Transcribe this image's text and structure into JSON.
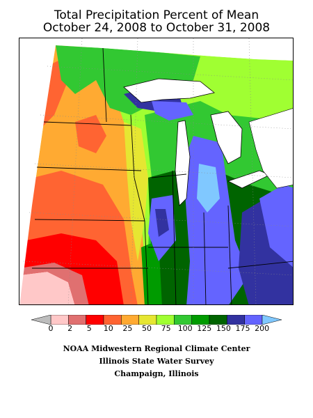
{
  "title": {
    "line1": "Total Precipitation Percent of Mean",
    "line2": "October 24, 2008 to October 31, 2008"
  },
  "legend": {
    "under_color": "#bdbdbd",
    "over_color": "#80c8ff",
    "bins": [
      {
        "color": "#ffc8c8"
      },
      {
        "color": "#e07070"
      },
      {
        "color": "#ff0000"
      },
      {
        "color": "#ff6432"
      },
      {
        "color": "#ffaa32"
      },
      {
        "color": "#e6e632"
      },
      {
        "color": "#a0ff32"
      },
      {
        "color": "#32c832"
      },
      {
        "color": "#009b00"
      },
      {
        "color": "#006400"
      },
      {
        "color": "#3232a0"
      },
      {
        "color": "#6464ff"
      }
    ],
    "ticks": [
      "0",
      "2",
      "5",
      "10",
      "25",
      "50",
      "75",
      "100",
      "125",
      "150",
      "175",
      "200"
    ]
  },
  "credits": {
    "line1": "NOAA Midwestern Regional Climate Center",
    "line2": "Illinois State Water Survey",
    "line3": "Champaign, Illinois"
  },
  "map": {
    "lake_color": "#ffffff",
    "boundary_color": "#000000",
    "graticule_color": "#888888"
  }
}
